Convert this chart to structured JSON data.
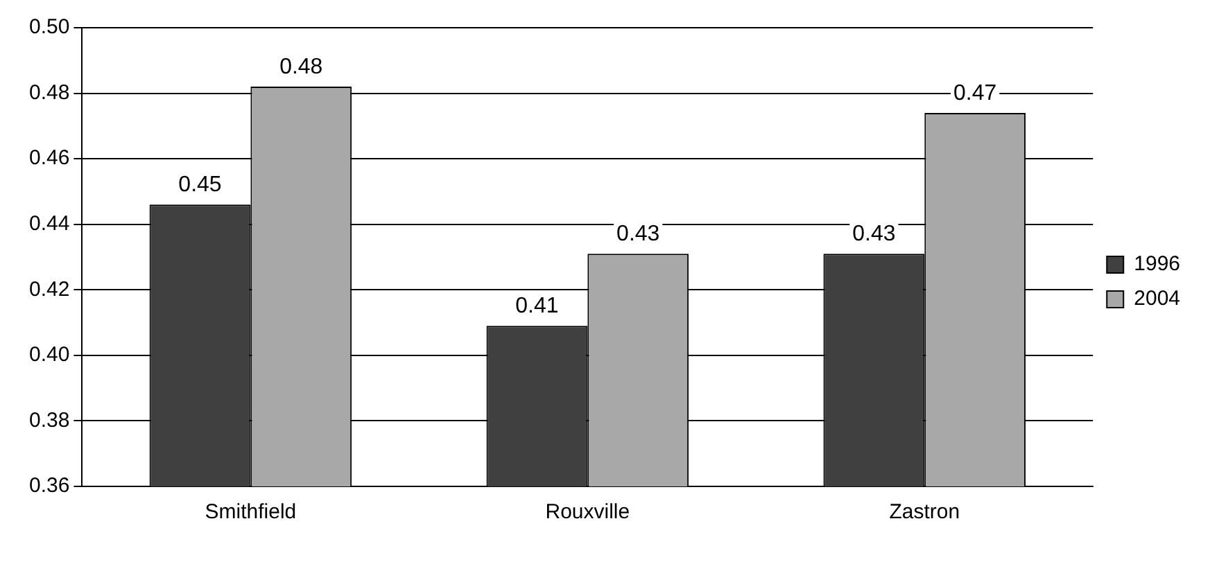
{
  "chart_data": {
    "type": "bar",
    "categories": [
      "Smithfield",
      "Rouxville",
      "Zastron"
    ],
    "series": [
      {
        "name": "1996",
        "color": "#404040",
        "values": [
          0.446,
          0.409,
          0.431
        ],
        "value_labels": [
          "0.45",
          "0.41",
          "0.43"
        ]
      },
      {
        "name": "2004",
        "color": "#a8a8a8",
        "values": [
          0.482,
          0.431,
          0.474
        ],
        "value_labels": [
          "0.48",
          "0.43",
          "0.47"
        ]
      }
    ],
    "ylim": [
      0.36,
      0.5
    ],
    "yticks": [
      0.36,
      0.38,
      {
        "value": 0.4,
        "label": "0.40"
      },
      0.42,
      0.44,
      0.46,
      0.48,
      {
        "value": 0.5,
        "label": "0.50"
      }
    ],
    "grid": "y",
    "legend": "right"
  }
}
